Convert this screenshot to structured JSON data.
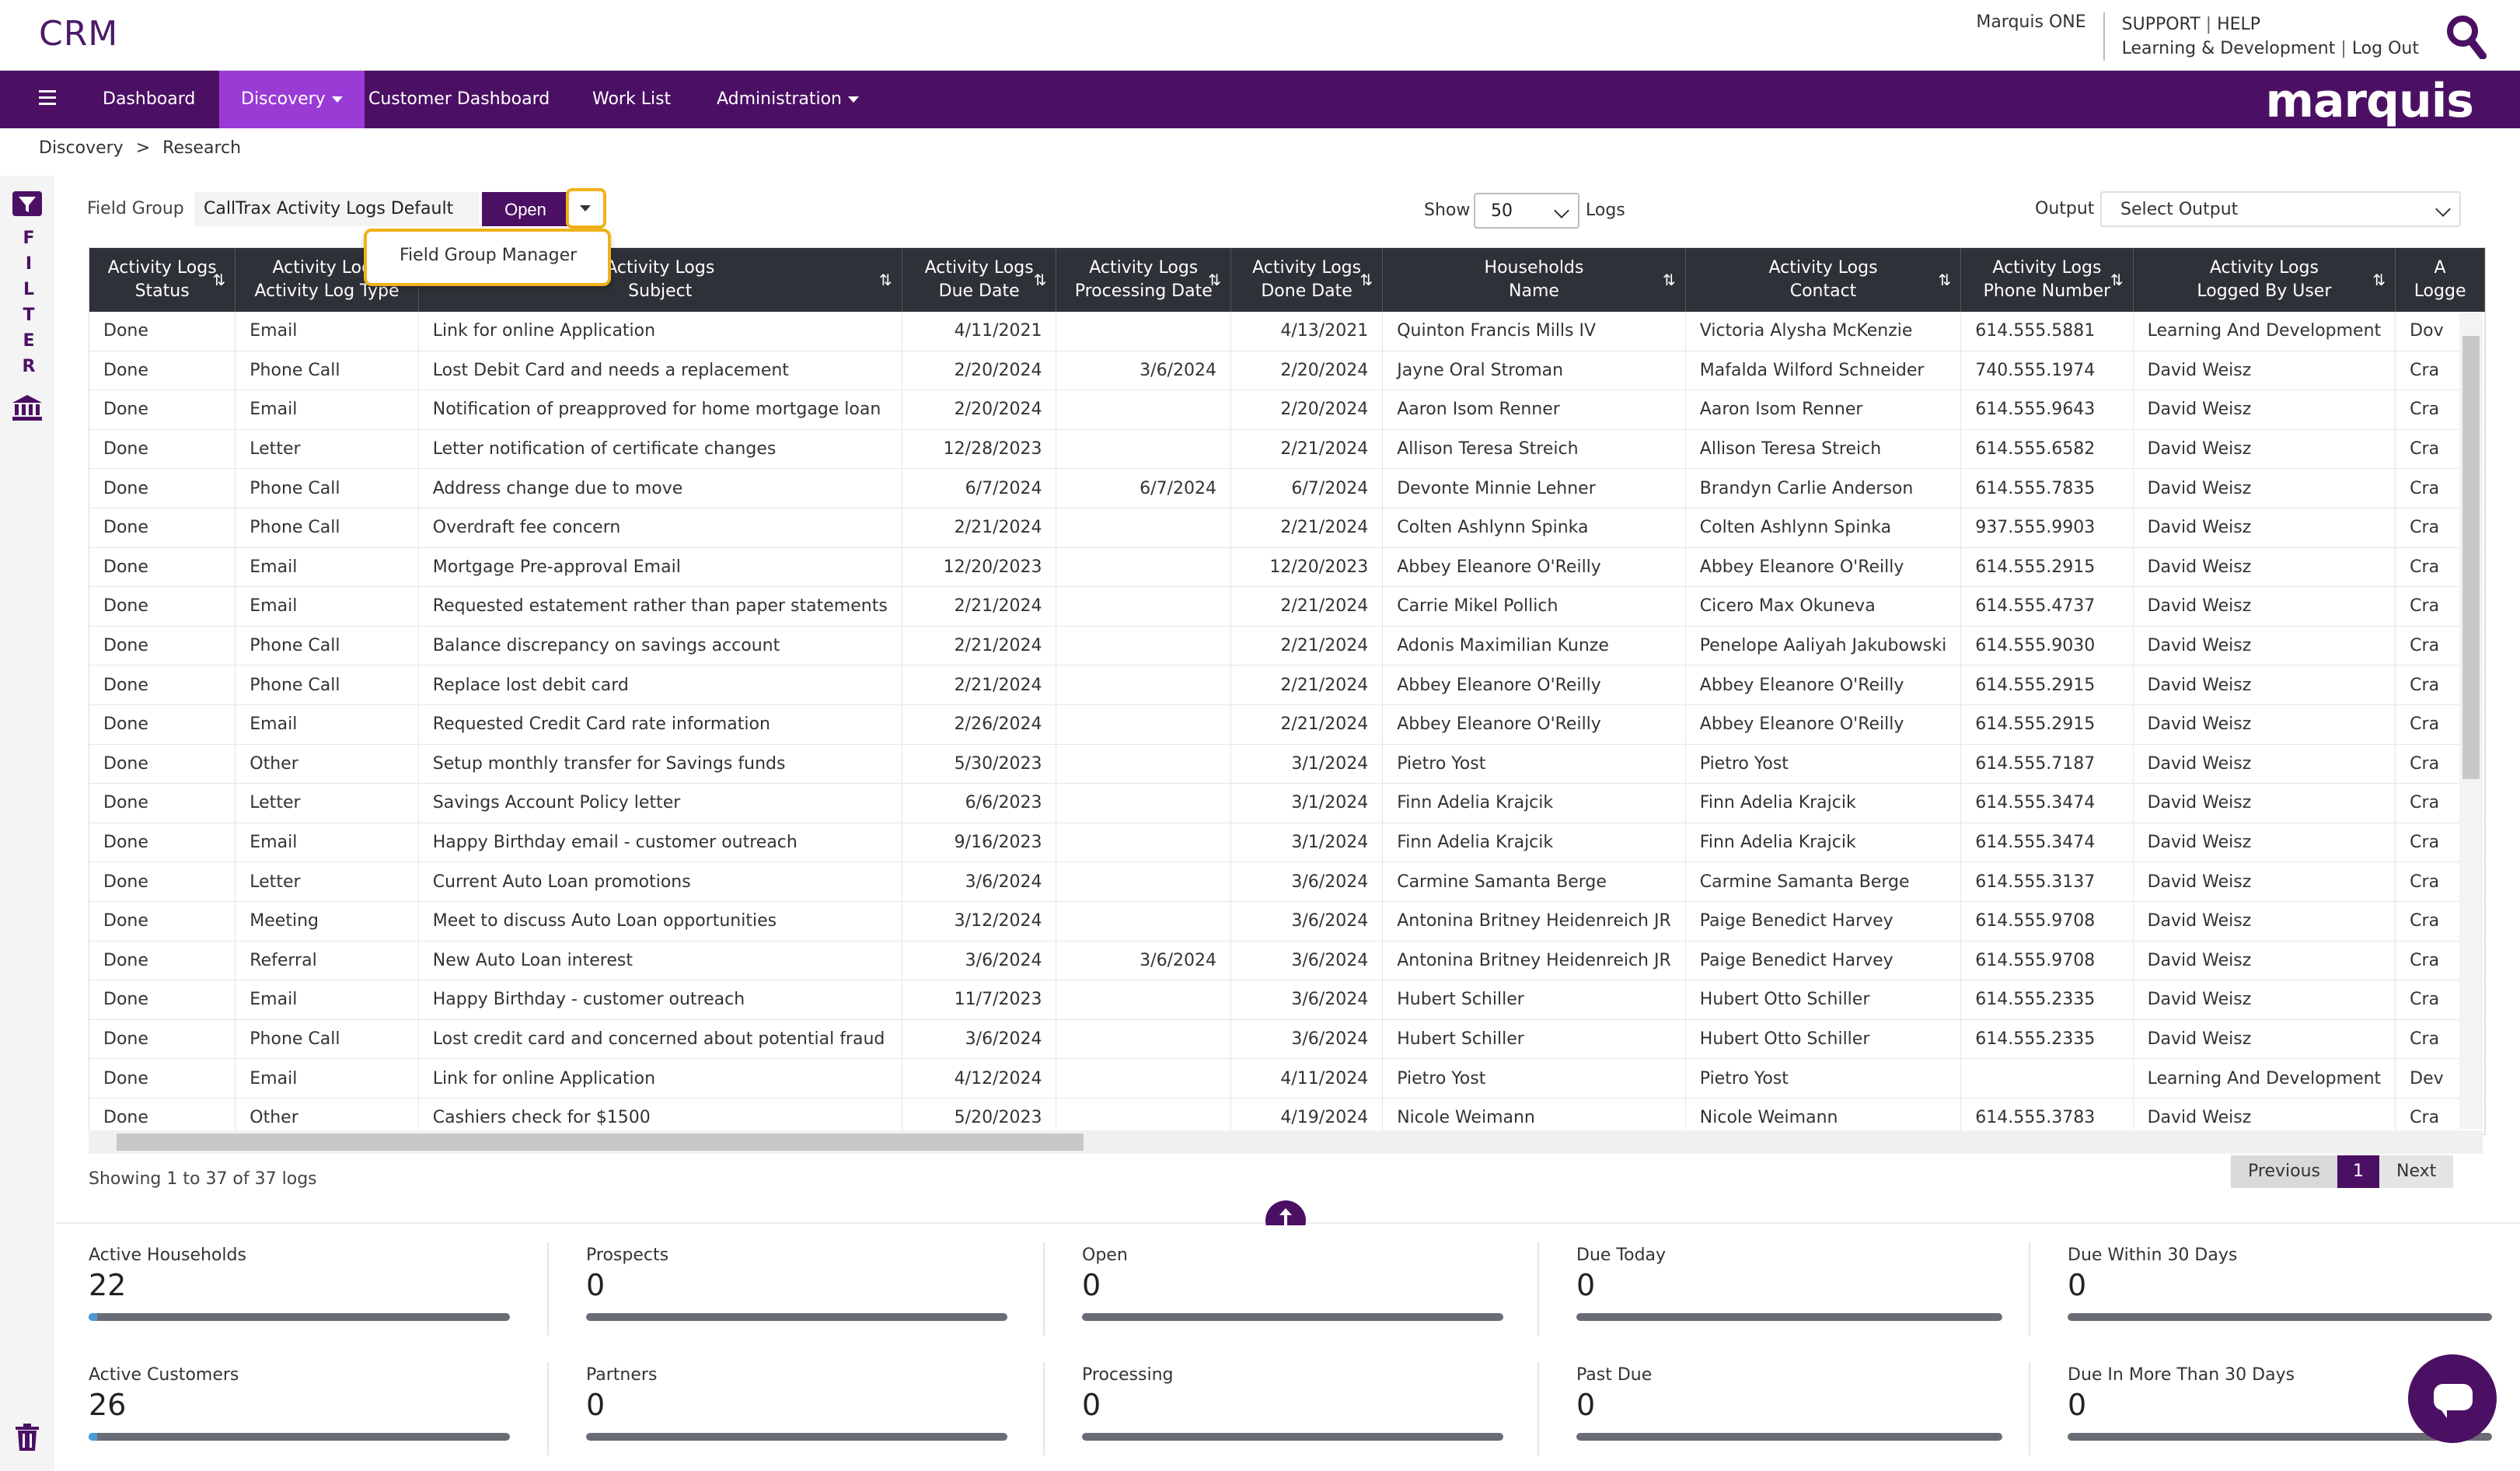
{
  "header": {
    "app_title": "CRM",
    "org": "Marquis ONE",
    "support": "SUPPORT",
    "help": "HELP",
    "learning": "Learning & Development",
    "logout": "Log Out",
    "brand": "marquis"
  },
  "nav": {
    "items": [
      {
        "label": "Dashboard"
      },
      {
        "label": "Discovery"
      },
      {
        "label": "Customer Dashboard"
      },
      {
        "label": "Work List"
      },
      {
        "label": "Administration"
      }
    ]
  },
  "breadcrumb": {
    "root": "Discovery",
    "sep": ">",
    "current": "Research"
  },
  "filter_rail": {
    "letters": [
      "F",
      "I",
      "L",
      "T",
      "E",
      "R"
    ]
  },
  "toolbar": {
    "field_group_label": "Field Group",
    "field_group_value": "CallTrax Activity Logs Default",
    "open_label": "Open",
    "menu_item": "Field Group Manager",
    "show_label": "Show",
    "show_value": "50",
    "logs_label": "Logs",
    "output_label": "Output",
    "output_placeholder": "Select Output"
  },
  "table": {
    "columns": [
      {
        "l1": "Activity Logs",
        "l2": "Status"
      },
      {
        "l1": "Activity Logs",
        "l2": "Activity Log Type"
      },
      {
        "l1": "Activity Logs",
        "l2": "Subject"
      },
      {
        "l1": "Activity Logs",
        "l2": "Due Date"
      },
      {
        "l1": "Activity Logs",
        "l2": "Processing Date"
      },
      {
        "l1": "Activity Logs",
        "l2": "Done Date"
      },
      {
        "l1": "Households",
        "l2": "Name"
      },
      {
        "l1": "Activity Logs",
        "l2": "Contact"
      },
      {
        "l1": "Activity Logs",
        "l2": "Phone Number"
      },
      {
        "l1": "Activity Logs",
        "l2": "Logged By User"
      },
      {
        "l1": "A",
        "l2": "Logge"
      }
    ],
    "rows": [
      [
        "Done",
        "Email",
        "Link for online Application",
        "4/11/2021",
        "",
        "4/13/2021",
        "Quinton Francis Mills IV",
        "Victoria Alysha McKenzie",
        "614.555.5881",
        "Learning And Development",
        "Dov"
      ],
      [
        "Done",
        "Phone Call",
        "Lost Debit Card and needs a replacement",
        "2/20/2024",
        "3/6/2024",
        "2/20/2024",
        "Jayne Oral Stroman",
        "Mafalda Wilford Schneider",
        "740.555.1974",
        "David Weisz",
        "Cra"
      ],
      [
        "Done",
        "Email",
        "Notification of preapproved for home mortgage loan",
        "2/20/2024",
        "",
        "2/20/2024",
        "Aaron Isom Renner",
        "Aaron Isom Renner",
        "614.555.9643",
        "David Weisz",
        "Cra"
      ],
      [
        "Done",
        "Letter",
        "Letter notification of certificate changes",
        "12/28/2023",
        "",
        "2/21/2024",
        "Allison Teresa Streich",
        "Allison Teresa Streich",
        "614.555.6582",
        "David Weisz",
        "Cra"
      ],
      [
        "Done",
        "Phone Call",
        "Address change due to move",
        "6/7/2024",
        "6/7/2024",
        "6/7/2024",
        "Devonte Minnie Lehner",
        "Brandyn Carlie Anderson",
        "614.555.7835",
        "David Weisz",
        "Cra"
      ],
      [
        "Done",
        "Phone Call",
        "Overdraft fee concern",
        "2/21/2024",
        "",
        "2/21/2024",
        "Colten Ashlynn Spinka",
        "Colten Ashlynn Spinka",
        "937.555.9903",
        "David Weisz",
        "Cra"
      ],
      [
        "Done",
        "Email",
        "Mortgage Pre-approval Email",
        "12/20/2023",
        "",
        "12/20/2023",
        "Abbey Eleanore O'Reilly",
        "Abbey Eleanore O'Reilly",
        "614.555.2915",
        "David Weisz",
        "Cra"
      ],
      [
        "Done",
        "Email",
        "Requested estatement rather than paper statements",
        "2/21/2024",
        "",
        "2/21/2024",
        "Carrie Mikel Pollich",
        "Cicero Max Okuneva",
        "614.555.4737",
        "David Weisz",
        "Cra"
      ],
      [
        "Done",
        "Phone Call",
        "Balance discrepancy on savings account",
        "2/21/2024",
        "",
        "2/21/2024",
        "Adonis Maximilian Kunze",
        "Penelope Aaliyah Jakubowski",
        "614.555.9030",
        "David Weisz",
        "Cra"
      ],
      [
        "Done",
        "Phone Call",
        "Replace lost debit card",
        "2/21/2024",
        "",
        "2/21/2024",
        "Abbey Eleanore O'Reilly",
        "Abbey Eleanore O'Reilly",
        "614.555.2915",
        "David Weisz",
        "Cra"
      ],
      [
        "Done",
        "Email",
        "Requested Credit Card rate information",
        "2/26/2024",
        "",
        "2/21/2024",
        "Abbey Eleanore O'Reilly",
        "Abbey Eleanore O'Reilly",
        "614.555.2915",
        "David Weisz",
        "Cra"
      ],
      [
        "Done",
        "Other",
        "Setup monthly transfer for Savings funds",
        "5/30/2023",
        "",
        "3/1/2024",
        "Pietro Yost",
        "Pietro Yost",
        "614.555.7187",
        "David Weisz",
        "Cra"
      ],
      [
        "Done",
        "Letter",
        "Savings Account Policy letter",
        "6/6/2023",
        "",
        "3/1/2024",
        "Finn Adelia Krajcik",
        "Finn Adelia Krajcik",
        "614.555.3474",
        "David Weisz",
        "Cra"
      ],
      [
        "Done",
        "Email",
        "Happy Birthday email - customer outreach",
        "9/16/2023",
        "",
        "3/1/2024",
        "Finn Adelia Krajcik",
        "Finn Adelia Krajcik",
        "614.555.3474",
        "David Weisz",
        "Cra"
      ],
      [
        "Done",
        "Letter",
        "Current Auto Loan promotions",
        "3/6/2024",
        "",
        "3/6/2024",
        "Carmine Samanta Berge",
        "Carmine Samanta Berge",
        "614.555.3137",
        "David Weisz",
        "Cra"
      ],
      [
        "Done",
        "Meeting",
        "Meet to discuss Auto Loan opportunities",
        "3/12/2024",
        "",
        "3/6/2024",
        "Antonina Britney Heidenreich JR",
        "Paige Benedict Harvey",
        "614.555.9708",
        "David Weisz",
        "Cra"
      ],
      [
        "Done",
        "Referral",
        "New Auto Loan interest",
        "3/6/2024",
        "3/6/2024",
        "3/6/2024",
        "Antonina Britney Heidenreich JR",
        "Paige Benedict Harvey",
        "614.555.9708",
        "David Weisz",
        "Cra"
      ],
      [
        "Done",
        "Email",
        "Happy Birthday - customer outreach",
        "11/7/2023",
        "",
        "3/6/2024",
        "Hubert Schiller",
        "Hubert Otto Schiller",
        "614.555.2335",
        "David Weisz",
        "Cra"
      ],
      [
        "Done",
        "Phone Call",
        "Lost credit card and concerned about potential fraud",
        "3/6/2024",
        "",
        "3/6/2024",
        "Hubert Schiller",
        "Hubert Otto Schiller",
        "614.555.2335",
        "David Weisz",
        "Cra"
      ],
      [
        "Done",
        "Email",
        "Link for online Application",
        "4/12/2024",
        "",
        "4/11/2024",
        "Pietro Yost",
        "Pietro Yost",
        "",
        "Learning And Development",
        "Dev"
      ],
      [
        "Done",
        "Other",
        "Cashiers check for $1500",
        "5/20/2023",
        "",
        "4/19/2024",
        "Nicole Weimann",
        "Nicole Weimann",
        "614.555.3783",
        "David Weisz",
        "Cra"
      ]
    ]
  },
  "pagination": {
    "summary": "Showing 1 to 37 of 37 logs",
    "previous": "Previous",
    "current": "1",
    "next": "Next"
  },
  "stats": [
    {
      "label": "Active Households",
      "value": "22",
      "fill": 0.02
    },
    {
      "label": "Prospects",
      "value": "0",
      "fill": 0
    },
    {
      "label": "Open",
      "value": "0",
      "fill": 0
    },
    {
      "label": "Due Today",
      "value": "0",
      "fill": 0
    },
    {
      "label": "Due Within 30 Days",
      "value": "0",
      "fill": 0
    },
    {
      "label": "Active Customers",
      "value": "26",
      "fill": 0.02
    },
    {
      "label": "Partners",
      "value": "0",
      "fill": 0
    },
    {
      "label": "Processing",
      "value": "0",
      "fill": 0
    },
    {
      "label": "Past Due",
      "value": "0",
      "fill": 0
    },
    {
      "label": "Due In More Than 30 Days",
      "value": "0",
      "fill": 0
    }
  ],
  "colors": {
    "primary": "#4b1063",
    "active_nav": "#9a3bd6",
    "highlight": "#f0b21b"
  }
}
